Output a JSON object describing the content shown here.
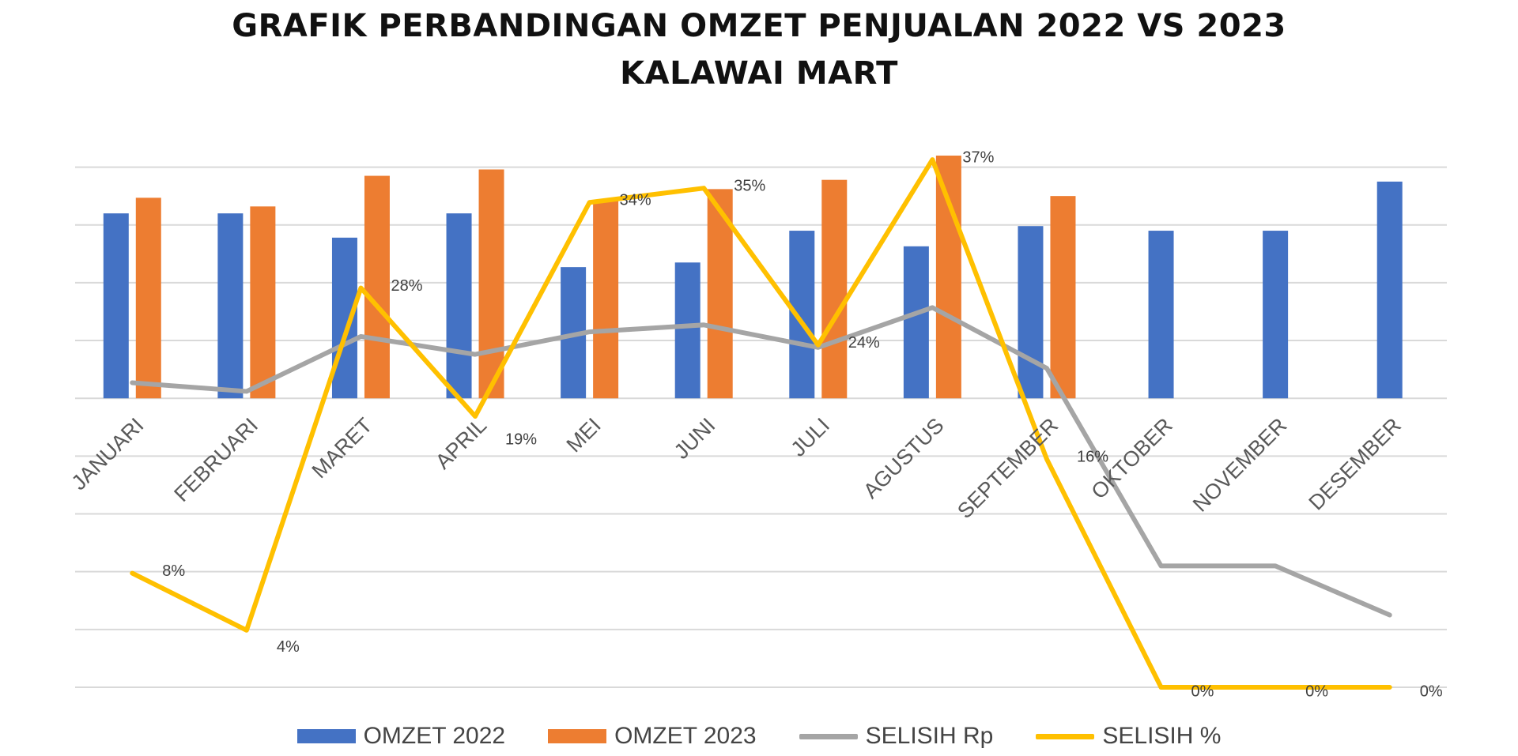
{
  "chart_data": {
    "type": "bar",
    "title": "GRAFIK PERBANDINGAN  OMZET  PENJUALAN 2022 VS 2023",
    "subtitle": "KALAWAI MART",
    "categories": [
      "JANUARI",
      "FEBRUARI",
      "MARET",
      "APRIL",
      "MEI",
      "JUNI",
      "JULI",
      "AGUSTUS",
      "SEPTEMBER",
      "OKTOBER",
      "NOVEMBER",
      "DESEMBER"
    ],
    "ylim": [
      -5,
      4.5
    ],
    "grid": true,
    "legend_position": "bottom",
    "series": [
      {
        "name": "OMZET  2022",
        "type": "bar",
        "color": "#4472C4",
        "values": [
          3.2,
          3.2,
          2.78,
          3.2,
          2.27,
          2.35,
          2.9,
          2.63,
          2.98,
          2.9,
          2.9,
          3.75
        ]
      },
      {
        "name": "OMZET  2023",
        "type": "bar",
        "color": "#ED7D31",
        "values": [
          3.47,
          3.32,
          3.85,
          3.96,
          3.42,
          3.62,
          3.78,
          4.2,
          3.5,
          null,
          null,
          null
        ]
      },
      {
        "name": "SELISIH Rp",
        "type": "line",
        "color": "#A5A5A5",
        "values": [
          0.27,
          0.12,
          1.07,
          0.76,
          1.15,
          1.27,
          0.88,
          1.57,
          0.52,
          -2.9,
          -2.9,
          -3.75
        ]
      },
      {
        "name": "SELISIH %",
        "type": "line",
        "color": "#FFC000",
        "values": [
          8,
          4,
          28,
          19,
          34,
          35,
          24,
          37,
          16,
          0,
          0,
          0
        ],
        "data_labels": [
          "8%",
          "4%",
          "28%",
          "19%",
          "34%",
          "35%",
          "24%",
          "37%",
          "16%",
          "0%",
          "0%",
          "0%"
        ],
        "ylim": [
          0,
          38.5
        ]
      }
    ]
  },
  "colors": {
    "grid": "#D9D9D9",
    "axis_text": "#595959",
    "label_text": "#404040"
  }
}
